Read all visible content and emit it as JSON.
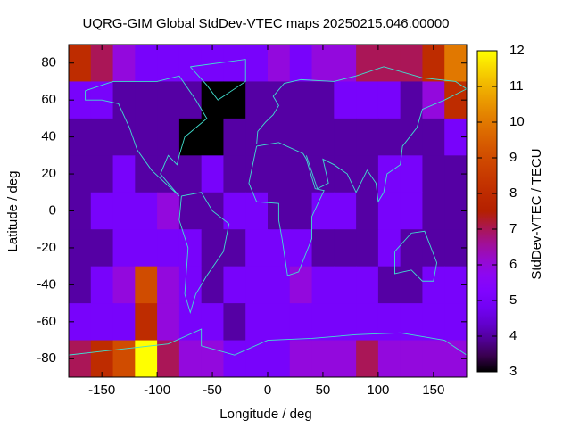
{
  "chart_data": {
    "type": "heatmap",
    "title": "UQRG-GIM Global StdDev-VTEC maps 20250215.046.00000",
    "xlabel": "Longitude / deg",
    "ylabel": "Latitude / deg",
    "zlabel": "StdDev-VTEC / TECU",
    "xlim": [
      -180,
      180
    ],
    "ylim": [
      -90,
      90
    ],
    "zlim": [
      3,
      12
    ],
    "xticks": [
      -150,
      -100,
      -50,
      0,
      50,
      100,
      150
    ],
    "yticks": [
      -80,
      -60,
      -40,
      -20,
      0,
      20,
      40,
      60,
      80
    ],
    "zticks": [
      3,
      4,
      5,
      6,
      7,
      8,
      9,
      10,
      11,
      12
    ],
    "xbins": [
      -180,
      -160,
      -140,
      -120,
      -100,
      -80,
      -60,
      -40,
      -20,
      0,
      20,
      40,
      60,
      80,
      100,
      120,
      140,
      160,
      180
    ],
    "ybins": [
      90,
      70,
      50,
      30,
      10,
      -10,
      -30,
      -50,
      -70,
      -90
    ],
    "z": [
      [
        8,
        7,
        6,
        5,
        5,
        5,
        5,
        5,
        5,
        6,
        5,
        6,
        6,
        7,
        7,
        7,
        8,
        10
      ],
      [
        5,
        5,
        4,
        4,
        4,
        4,
        3,
        3,
        4,
        4,
        4,
        4,
        5,
        5,
        5,
        4,
        6,
        8
      ],
      [
        4,
        4,
        4,
        4,
        4,
        3,
        3,
        4,
        4,
        4,
        4,
        4,
        4,
        4,
        4,
        4,
        4,
        5
      ],
      [
        4,
        4,
        5,
        4,
        4,
        4,
        5,
        4,
        4,
        4,
        4,
        4,
        4,
        4,
        5,
        5,
        4,
        4
      ],
      [
        4,
        5,
        5,
        5,
        6,
        4,
        4,
        5,
        5,
        4,
        4,
        5,
        5,
        4,
        5,
        5,
        4,
        4
      ],
      [
        4,
        4,
        5,
        5,
        5,
        5,
        4,
        4,
        5,
        5,
        5,
        4,
        4,
        4,
        5,
        4,
        4,
        4
      ],
      [
        4,
        5,
        6,
        9,
        6,
        5,
        4,
        5,
        5,
        5,
        6,
        5,
        5,
        5,
        4,
        4,
        5,
        5
      ],
      [
        5,
        5,
        5,
        8,
        6,
        5,
        5,
        4,
        5,
        5,
        5,
        5,
        5,
        5,
        5,
        5,
        5,
        5
      ],
      [
        7,
        8,
        9,
        12,
        7,
        6,
        6,
        5,
        5,
        5,
        6,
        6,
        6,
        7,
        6,
        6,
        6,
        6
      ]
    ]
  }
}
